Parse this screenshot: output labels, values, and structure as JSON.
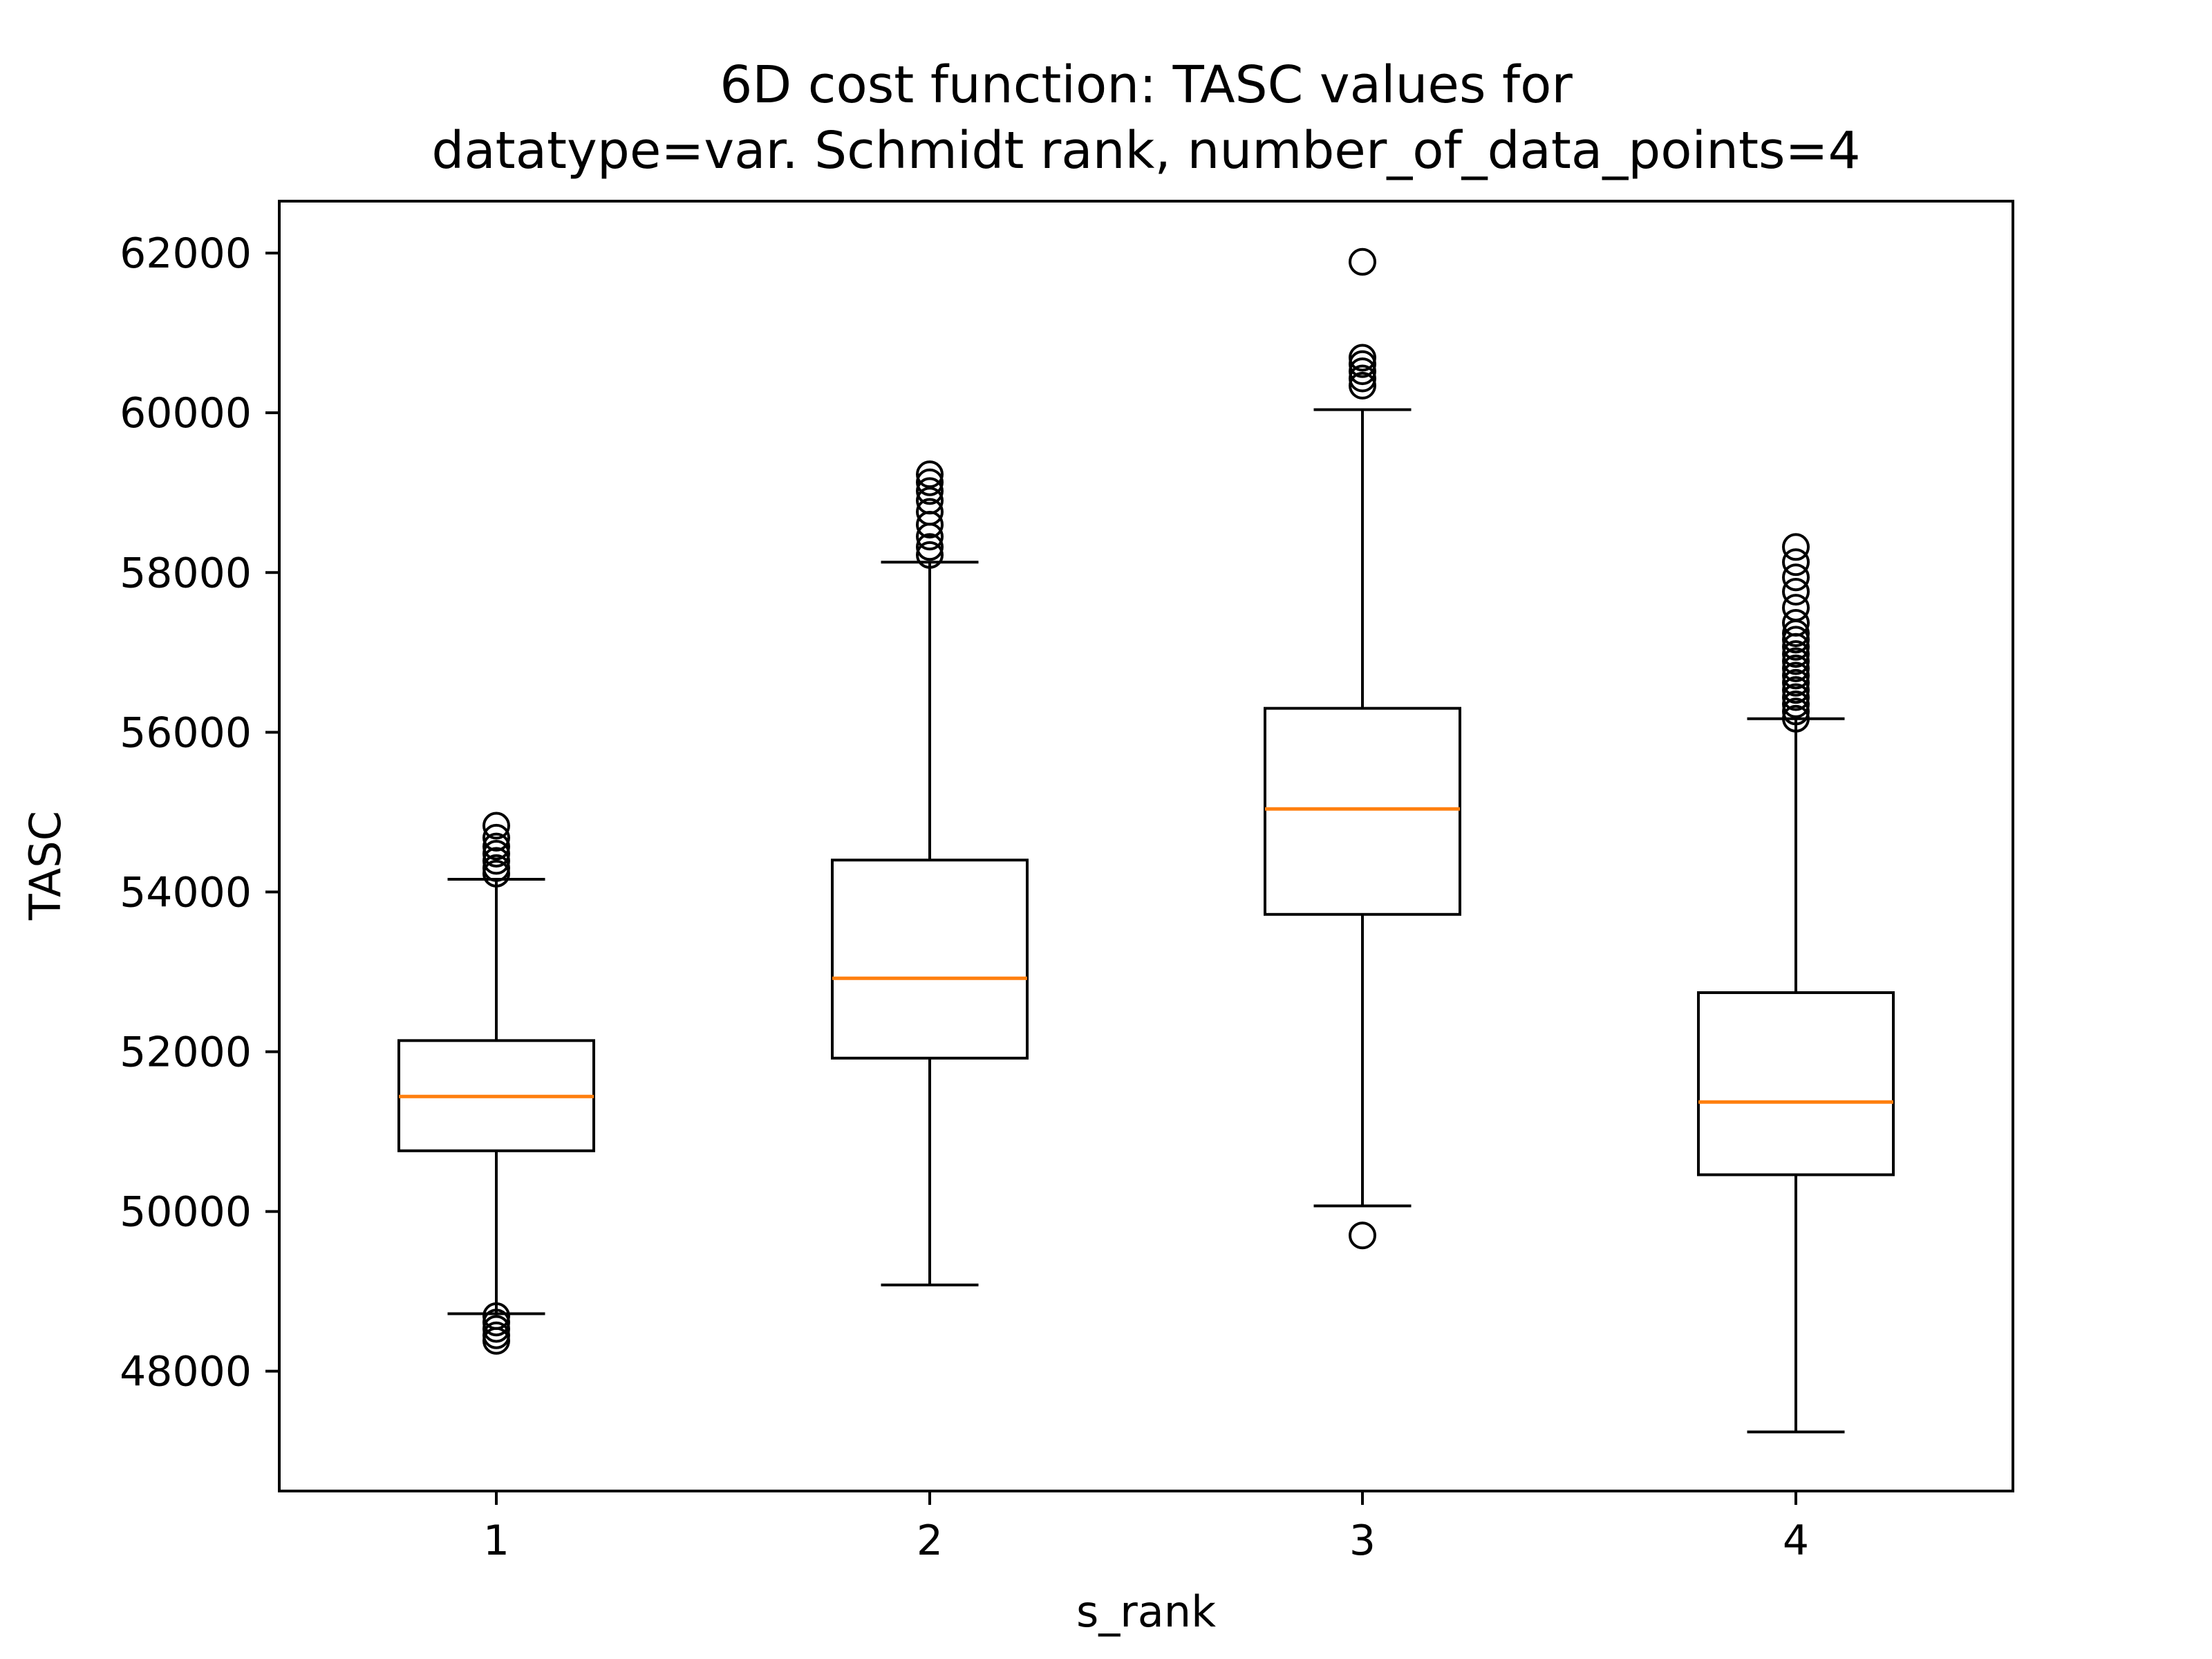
{
  "chart_data": {
    "type": "box",
    "title": [
      "6D cost function: TASC values for",
      "datatype=var. Schmidt rank, number_of_data_points=4"
    ],
    "xlabel": "s_rank",
    "ylabel": "TASC",
    "categories": [
      "1",
      "2",
      "3",
      "4"
    ],
    "y_ticks": [
      48000,
      50000,
      52000,
      54000,
      56000,
      58000,
      60000,
      62000
    ],
    "y_tick_labels": [
      "48000",
      "50000",
      "52000",
      "54000",
      "56000",
      "58000",
      "60000",
      "62000"
    ],
    "ylim": [
      46500,
      62650
    ],
    "grid": false,
    "colors": {
      "box": "#000000",
      "median": "#ff7f0e",
      "background": "#ffffff"
    },
    "boxes": [
      {
        "category": "1",
        "whisker_low": 48720,
        "q1": 50760,
        "median": 51440,
        "q3": 52140,
        "whisker_high": 54160,
        "outliers": [
          48380,
          48450,
          48530,
          48610,
          48690,
          54230,
          54300,
          54390,
          54480,
          54570,
          54680,
          54830
        ]
      },
      {
        "category": "2",
        "whisker_low": 49080,
        "q1": 51920,
        "median": 52920,
        "q3": 54400,
        "whisker_high": 58130,
        "outliers": [
          58220,
          58320,
          58450,
          58600,
          58760,
          58900,
          59020,
          59130,
          59230
        ]
      },
      {
        "category": "3",
        "whisker_low": 50070,
        "q1": 53720,
        "median": 55040,
        "q3": 56300,
        "whisker_high": 60040,
        "outliers": [
          49700,
          60340,
          60430,
          60520,
          60610,
          60690,
          61890
        ]
      },
      {
        "category": "4",
        "whisker_low": 47240,
        "q1": 50460,
        "median": 51370,
        "q3": 52740,
        "whisker_high": 56170,
        "outliers": [
          56170,
          56260,
          56350,
          56440,
          56530,
          56620,
          56710,
          56800,
          56890,
          56980,
          57070,
          57160,
          57240,
          57370,
          57560,
          57760,
          57940,
          58130,
          58320
        ]
      }
    ]
  }
}
